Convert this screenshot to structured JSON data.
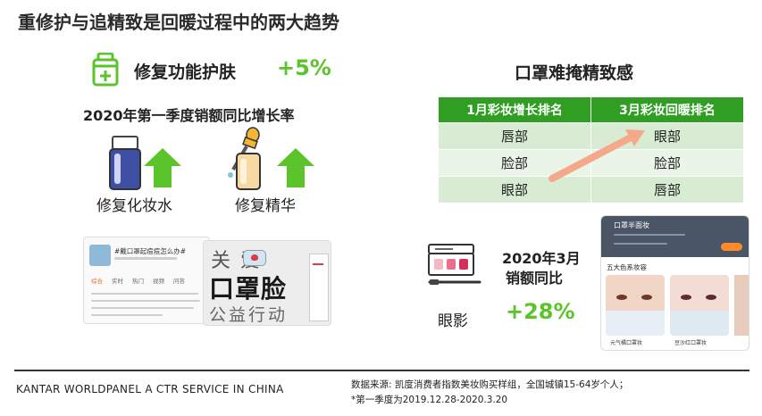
{
  "title": "重修护与追精致是回暖过程中的两大趋势",
  "left": {
    "heading": "修复功能护肤",
    "growth": "+5%",
    "subtitle": "2020年第一季度销额同比增长率",
    "products": [
      {
        "label": "修复化妆水",
        "icon": "toner-bottle-icon"
      },
      {
        "label": "修复精华",
        "icon": "dropper-serum-icon"
      }
    ],
    "screenshot": {
      "question": "#戴口罩起痘痘怎么办#",
      "tabs": [
        "综合",
        "实时",
        "热门",
        "视频",
        "问答"
      ],
      "poster_top": "关  爱",
      "poster_main": "口罩脸",
      "poster_bottom": "公益行动"
    }
  },
  "right": {
    "heading": "口罩难掩精致感",
    "table": {
      "headers": [
        "1月彩妆增长排名",
        "3月彩妆回暖排名"
      ],
      "rows": [
        [
          "唇部",
          "眼部"
        ],
        [
          "脸部",
          "脸部"
        ],
        [
          "眼部",
          "唇部"
        ]
      ]
    },
    "eye": {
      "subtitle_line1": "2020年3月",
      "subtitle_line2": "销额同比",
      "label": "眼影",
      "growth": "+28%",
      "icon": "eyeshadow-palette-icon"
    },
    "phone": {
      "header": "口罩半面妆",
      "section": "五大色系妆容",
      "captions": [
        "元气橘口罩妆",
        "豆沙红口罩妆"
      ]
    }
  },
  "footer": {
    "brand": "KANTAR WORLDPANEL A CTR SERVICE IN CHINA",
    "note1": "数据来源: 凯度消费者指数美妆购买样组，全国城镇15-64岁个人；",
    "note2": "*第一季度为2019.12.28-2020.3.20"
  },
  "colors": {
    "accent": "#5cc42b",
    "table_header": "#2f9e22",
    "arrow": "#f4a98a"
  }
}
